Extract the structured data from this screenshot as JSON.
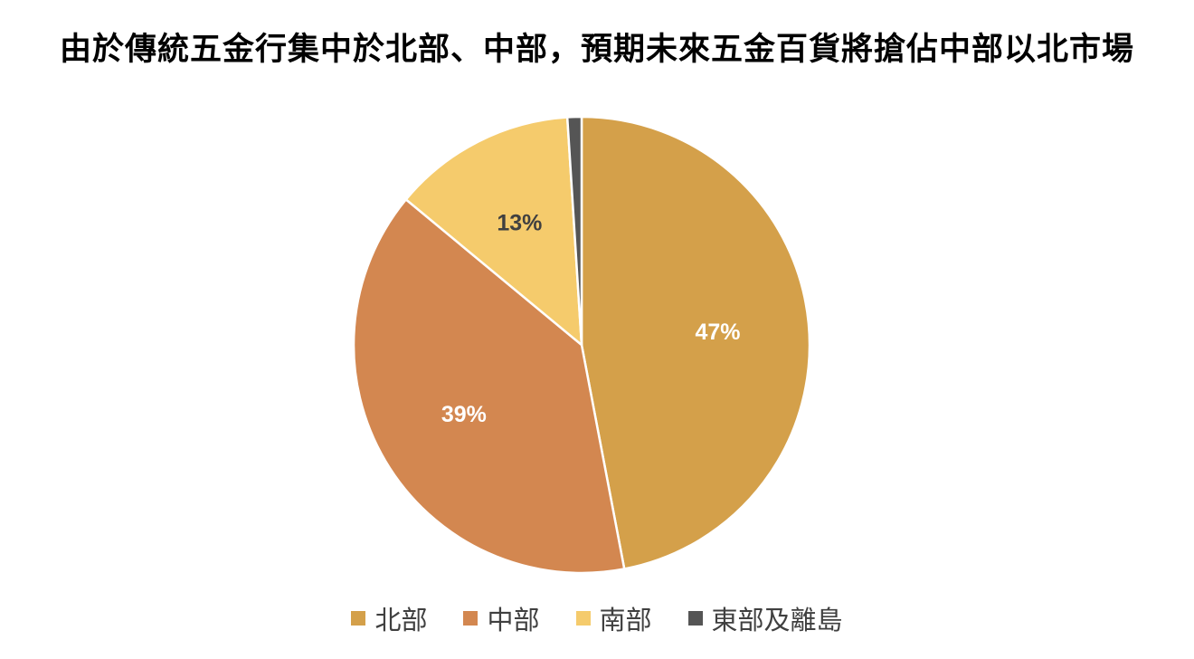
{
  "chart_data": {
    "type": "pie",
    "title": "由於傳統五金行集中於北部、中部，預期未來五金百貨將搶佔中部以北市場",
    "slices": [
      {
        "name": "北部",
        "value": 47,
        "label": "47%",
        "color": "#D4A04A",
        "label_color": "#ffffff"
      },
      {
        "name": "中部",
        "value": 39,
        "label": "39%",
        "color": "#D38750",
        "label_color": "#ffffff"
      },
      {
        "name": "南部",
        "value": 13,
        "label": "13%",
        "color": "#F5CB6C",
        "label_color": "#404040"
      },
      {
        "name": "東部及離島",
        "value": 1,
        "label": "",
        "color": "#555555",
        "label_color": "#ffffff"
      }
    ],
    "legend_position": "bottom"
  }
}
